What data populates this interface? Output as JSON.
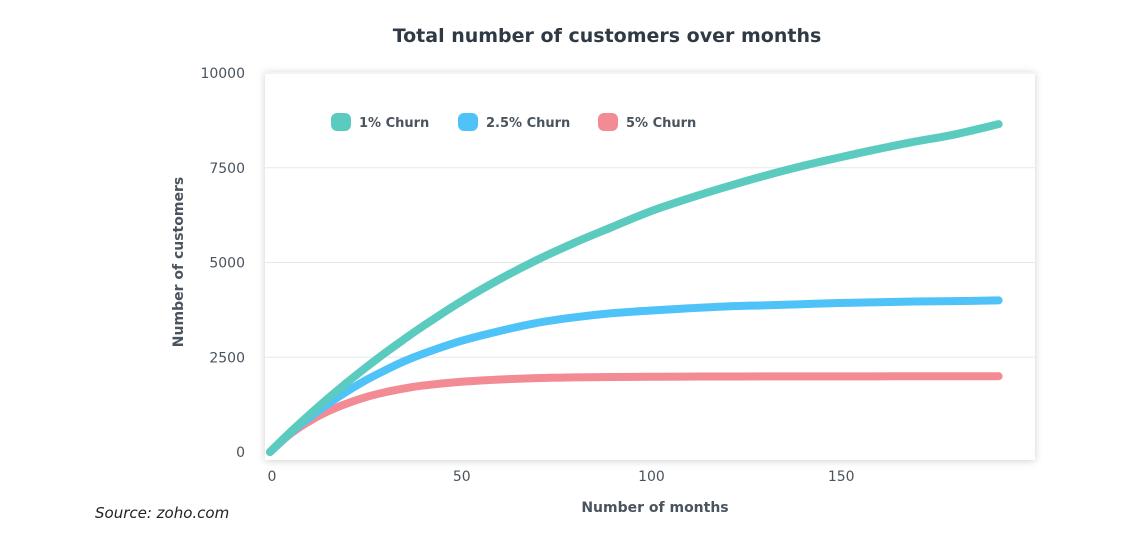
{
  "chart_data": {
    "type": "line",
    "title": "Total number of customers over months",
    "xlabel": "Number of months",
    "ylabel": "Number of customers",
    "xlim": [
      0,
      195
    ],
    "ylim": [
      0,
      10000
    ],
    "xticks": [
      0,
      50,
      100,
      150
    ],
    "yticks": [
      0,
      2500,
      5000,
      7500,
      10000
    ],
    "grid": "horizontal",
    "legend_position": "top-left",
    "x": [
      0,
      5,
      10,
      15,
      20,
      25,
      30,
      35,
      40,
      50,
      60,
      70,
      80,
      90,
      100,
      110,
      120,
      130,
      140,
      150,
      160,
      170,
      180,
      192
    ],
    "series": [
      {
        "name": "1% Churn",
        "color": "#5ccbbf",
        "values": [
          0,
          490,
          950,
          1390,
          1810,
          2210,
          2590,
          2950,
          3300,
          3950,
          4530,
          5050,
          5510,
          5930,
          6340,
          6680,
          6990,
          7280,
          7540,
          7770,
          7990,
          8190,
          8370,
          8650
        ]
      },
      {
        "name": "2.5% Churn",
        "color": "#4fc3f7",
        "values": [
          0,
          470,
          880,
          1250,
          1580,
          1880,
          2140,
          2380,
          2580,
          2920,
          3180,
          3400,
          3550,
          3660,
          3730,
          3790,
          3840,
          3870,
          3900,
          3930,
          3950,
          3970,
          3980,
          4000
        ]
      },
      {
        "name": "5% Churn",
        "color": "#f28b94",
        "values": [
          0,
          450,
          790,
          1060,
          1270,
          1440,
          1570,
          1670,
          1750,
          1850,
          1910,
          1950,
          1970,
          1980,
          1985,
          1990,
          1992,
          1994,
          1995,
          1996,
          1997,
          1998,
          1999,
          2000
        ]
      }
    ]
  },
  "source": "Source: zoho.com"
}
